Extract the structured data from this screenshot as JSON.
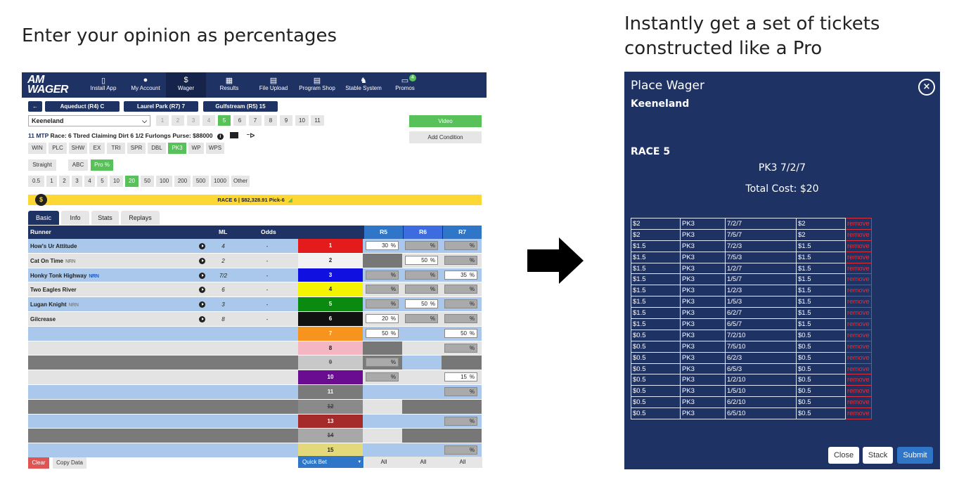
{
  "headings": {
    "left": "Enter your opinion as percentages",
    "right_line1": "Instantly get a set of tickets",
    "right_line2": "constructed like a Pro"
  },
  "app": {
    "logo_line1": "AM",
    "logo_line2": "WAGER",
    "nav": [
      {
        "label": "Install App",
        "icon": "phone-icon",
        "glyph": "▯"
      },
      {
        "label": "My Account",
        "icon": "user-icon",
        "glyph": "●"
      },
      {
        "label": "Wager",
        "icon": "dollar-icon",
        "glyph": "$"
      },
      {
        "label": "Results",
        "icon": "calendar-icon",
        "glyph": "▦"
      },
      {
        "label": "File Upload",
        "icon": "file-icon",
        "glyph": "▤"
      },
      {
        "label": "Program Shop",
        "icon": "document-icon",
        "glyph": "▤"
      },
      {
        "label": "Stable System",
        "icon": "horse-icon",
        "glyph": "♞"
      },
      {
        "label": "Promos",
        "icon": "ticket-icon",
        "glyph": "▭",
        "badge": "4"
      }
    ],
    "back_glyph": "←",
    "tracks": [
      "Aqueduct (R4) C",
      "Laurel Park (R7) 7",
      "Gulfstream (R5) 15"
    ],
    "track_select": "Keeneland",
    "race_numbers": [
      "1",
      "2",
      "3",
      "4",
      "5",
      "6",
      "7",
      "8",
      "9",
      "10",
      "11"
    ],
    "selected_race": "5",
    "video_label": "Video",
    "add_condition_label": "Add Condition",
    "race_info": {
      "mtp": "11  MTP",
      "details": "Race: 6 Tbred Claiming Dirt 6 1/2 Furlongs Purse: $88000"
    },
    "bet_types": [
      "WIN",
      "PLC",
      "SHW",
      "EX",
      "TRI",
      "SPR",
      "DBL",
      "PK3",
      "WP",
      "WPS"
    ],
    "selected_bet_type": "PK3",
    "modes": [
      "Straight",
      "ABC",
      "Pro %"
    ],
    "selected_mode": "Pro %",
    "amounts": [
      "0.5",
      "1",
      "2",
      "3",
      "4",
      "5",
      "10",
      "20",
      "50",
      "100",
      "200",
      "500",
      "1000",
      "Other"
    ],
    "selected_amount": "20",
    "race_band": "RACE 6  |  $82,328.91 Pick-6",
    "race_band_icon": "$",
    "tabs": [
      "Basic",
      "Info",
      "Stats",
      "Replays"
    ],
    "selected_tab": "Basic",
    "grid_headers": {
      "runner": "Runner",
      "ml": "ML",
      "odds": "Odds",
      "r5": "R5",
      "r6": "R6",
      "r7": "R7"
    },
    "runners": [
      {
        "name": "How's Ur Attitude",
        "tag": "",
        "ml": "4",
        "odds": "-"
      },
      {
        "name": "Cat On Time",
        "tag": "NRN",
        "tag_color": "grey",
        "ml": "2",
        "odds": "-"
      },
      {
        "name": "Honky Tonk Highway",
        "tag": "NRN",
        "tag_color": "blue",
        "ml": "7/2",
        "odds": "-"
      },
      {
        "name": "Two Eagles River",
        "tag": "",
        "ml": "6",
        "odds": "-"
      },
      {
        "name": "Lugan Knight",
        "tag": "NRN",
        "tag_color": "grey",
        "ml": "3",
        "odds": "-"
      },
      {
        "name": "Gilcrease",
        "tag": "",
        "ml": "8",
        "odds": "-"
      }
    ],
    "pct_symbol": "%",
    "rows": [
      {
        "num": "1",
        "bg": "#e31b1b",
        "fg": "#ffffff",
        "r5": "30",
        "r6": "",
        "r7": "",
        "r5_state": "filled",
        "r6_state": "empty",
        "r7_state": "empty"
      },
      {
        "num": "2",
        "bg": "#f2f2f2",
        "fg": "#222222",
        "r5": "",
        "r6": "50",
        "r7": "",
        "r5_state": "scratch",
        "r6_state": "filled",
        "r7_state": "empty"
      },
      {
        "num": "3",
        "bg": "#1010e0",
        "fg": "#ffffff",
        "r5": "",
        "r6": "",
        "r7": "35",
        "r5_state": "empty",
        "r6_state": "empty",
        "r7_state": "filled"
      },
      {
        "num": "4",
        "bg": "#f4f400",
        "fg": "#222222",
        "r5": "",
        "r6": "",
        "r7": "",
        "r5_state": "empty",
        "r6_state": "empty",
        "r7_state": "empty"
      },
      {
        "num": "5",
        "bg": "#0b8a10",
        "fg": "#ffffff",
        "r5": "",
        "r6": "50",
        "r7": "",
        "r5_state": "empty",
        "r6_state": "filled",
        "r7_state": "empty"
      },
      {
        "num": "6",
        "bg": "#111111",
        "fg": "#ffffff",
        "r5": "20",
        "r6": "",
        "r7": "",
        "r5_state": "filled",
        "r6_state": "empty",
        "r7_state": "empty"
      },
      {
        "num": "7",
        "bg": "#f7941d",
        "fg": "#ffffff",
        "r5": "50",
        "r6": "",
        "r7": "50",
        "r5_state": "filled",
        "r6_state": "none",
        "r7_state": "filled"
      },
      {
        "num": "8",
        "bg": "#f4b6c2",
        "fg": "#222222",
        "r5": "",
        "r6": "",
        "r7": "",
        "r5_state": "scratch",
        "r6_state": "none",
        "r7_state": "empty"
      },
      {
        "num": "9",
        "bg": "#c8c8c8",
        "fg": "#555555",
        "r5": "",
        "r6": "",
        "r7": "",
        "r5_state": "empty",
        "r6_state": "none",
        "r7_state": "scratch",
        "struck": true
      },
      {
        "num": "10",
        "bg": "#6a0d91",
        "fg": "#ffffff",
        "r5": "",
        "r6": "",
        "r7": "15",
        "r5_state": "empty",
        "r6_state": "none",
        "r7_state": "filled"
      },
      {
        "num": "11",
        "bg": "#7a7a7a",
        "fg": "#ffffff",
        "r5": "",
        "r6": "",
        "r7": "",
        "r5_state": "none",
        "r6_state": "none",
        "r7_state": "empty"
      },
      {
        "num": "12",
        "bg": "#8a8a8a",
        "fg": "#444444",
        "r5": "",
        "r6": "",
        "r7": "",
        "r5_state": "none",
        "r6_state": "scratch",
        "r7_state": "scratch",
        "struck": true
      },
      {
        "num": "13",
        "bg": "#a52a2a",
        "fg": "#ffffff",
        "r5": "",
        "r6": "",
        "r7": "",
        "r5_state": "none",
        "r6_state": "none",
        "r7_state": "empty"
      },
      {
        "num": "14",
        "bg": "#a8a8a8",
        "fg": "#444444",
        "r5": "",
        "r6": "",
        "r7": "",
        "r5_state": "none",
        "r6_state": "scratch",
        "r7_state": "scratch",
        "struck": true
      },
      {
        "num": "15",
        "bg": "#e4d97a",
        "fg": "#222222",
        "r5": "",
        "r6": "",
        "r7": "",
        "r5_state": "none",
        "r6_state": "none",
        "r7_state": "empty"
      }
    ],
    "footer": {
      "clear": "Clear",
      "copy": "Copy Data",
      "quick_bet": "Quick Bet",
      "all": "All"
    }
  },
  "modal": {
    "title": "Place Wager",
    "close_glyph": "×",
    "track": "Keeneland",
    "race": "RACE 5",
    "wager": "PK3 7/2/7",
    "total_cost": "Total Cost: $20",
    "tickets": [
      [
        "$2",
        "PK3",
        "7/2/7",
        "$2"
      ],
      [
        "$2",
        "PK3",
        "7/5/7",
        "$2"
      ],
      [
        "$1.5",
        "PK3",
        "7/2/3",
        "$1.5"
      ],
      [
        "$1.5",
        "PK3",
        "7/5/3",
        "$1.5"
      ],
      [
        "$1.5",
        "PK3",
        "1/2/7",
        "$1.5"
      ],
      [
        "$1.5",
        "PK3",
        "1/5/7",
        "$1.5"
      ],
      [
        "$1.5",
        "PK3",
        "1/2/3",
        "$1.5"
      ],
      [
        "$1.5",
        "PK3",
        "1/5/3",
        "$1.5"
      ],
      [
        "$1.5",
        "PK3",
        "6/2/7",
        "$1.5"
      ],
      [
        "$1.5",
        "PK3",
        "6/5/7",
        "$1.5"
      ],
      [
        "$0.5",
        "PK3",
        "7/2/10",
        "$0.5"
      ],
      [
        "$0.5",
        "PK3",
        "7/5/10",
        "$0.5"
      ],
      [
        "$0.5",
        "PK3",
        "6/2/3",
        "$0.5"
      ],
      [
        "$0.5",
        "PK3",
        "6/5/3",
        "$0.5"
      ],
      [
        "$0.5",
        "PK3",
        "1/2/10",
        "$0.5"
      ],
      [
        "$0.5",
        "PK3",
        "1/5/10",
        "$0.5"
      ],
      [
        "$0.5",
        "PK3",
        "6/2/10",
        "$0.5"
      ],
      [
        "$0.5",
        "PK3",
        "6/5/10",
        "$0.5"
      ]
    ],
    "remove_label": "remove",
    "buttons": {
      "close": "Close",
      "stack": "Stack",
      "submit": "Submit"
    }
  },
  "colors": {
    "navy": "#1e3264",
    "green": "#58c15a",
    "accent_blue": "#2f76c8",
    "remove_red": "#e0313a",
    "band_yellow": "#fdd835"
  }
}
